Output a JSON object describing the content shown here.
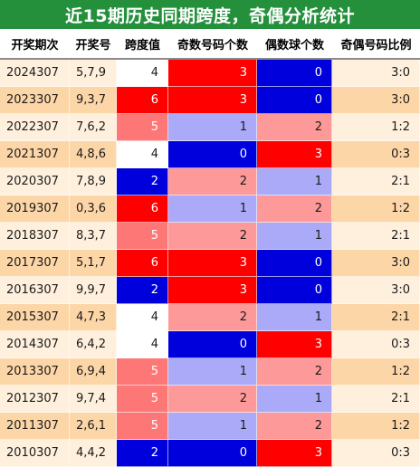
{
  "title": "近15期历史同期跨度，奇偶分析统计",
  "headers": [
    "开奖期次",
    "开奖号",
    "跨度值",
    "奇数号码个数",
    "偶数球个数",
    "奇偶号码比例"
  ],
  "colors": {
    "title_bg": "#24903c",
    "row_odd": "#fff0dd",
    "row_even": "#fdd6a8",
    "red": "#ff0000",
    "blue": "#0000dd",
    "pink": "#fe9999",
    "lavender": "#aaaaf8",
    "salmon": "#fe7777",
    "white": "#ffffff"
  },
  "rows": [
    {
      "period": "2024307",
      "numbers": "5,7,9",
      "span": "4",
      "odd": "3",
      "even": "0",
      "ratio": "3:0",
      "span_color": "white",
      "odd_color": "red",
      "even_color": "blue"
    },
    {
      "period": "2023307",
      "numbers": "9,3,7",
      "span": "6",
      "odd": "3",
      "even": "0",
      "ratio": "3:0",
      "span_color": "red",
      "odd_color": "red",
      "even_color": "blue"
    },
    {
      "period": "2022307",
      "numbers": "7,6,2",
      "span": "5",
      "odd": "1",
      "even": "2",
      "ratio": "1:2",
      "span_color": "salmon",
      "odd_color": "lavender",
      "even_color": "pink"
    },
    {
      "period": "2021307",
      "numbers": "4,8,6",
      "span": "4",
      "odd": "0",
      "even": "3",
      "ratio": "0:3",
      "span_color": "white",
      "odd_color": "blue",
      "even_color": "red"
    },
    {
      "period": "2020307",
      "numbers": "7,8,9",
      "span": "2",
      "odd": "2",
      "even": "1",
      "ratio": "2:1",
      "span_color": "blue",
      "odd_color": "pink",
      "even_color": "lavender"
    },
    {
      "period": "2019307",
      "numbers": "0,3,6",
      "span": "6",
      "odd": "1",
      "even": "2",
      "ratio": "1:2",
      "span_color": "red",
      "odd_color": "lavender",
      "even_color": "pink"
    },
    {
      "period": "2018307",
      "numbers": "8,3,7",
      "span": "5",
      "odd": "2",
      "even": "1",
      "ratio": "2:1",
      "span_color": "salmon",
      "odd_color": "pink",
      "even_color": "lavender"
    },
    {
      "period": "2017307",
      "numbers": "5,1,7",
      "span": "6",
      "odd": "3",
      "even": "0",
      "ratio": "3:0",
      "span_color": "red",
      "odd_color": "red",
      "even_color": "blue"
    },
    {
      "period": "2016307",
      "numbers": "9,9,7",
      "span": "2",
      "odd": "3",
      "even": "0",
      "ratio": "3:0",
      "span_color": "blue",
      "odd_color": "red",
      "even_color": "blue"
    },
    {
      "period": "2015307",
      "numbers": "4,7,3",
      "span": "4",
      "odd": "2",
      "even": "1",
      "ratio": "2:1",
      "span_color": "white",
      "odd_color": "pink",
      "even_color": "lavender"
    },
    {
      "period": "2014307",
      "numbers": "6,4,2",
      "span": "4",
      "odd": "0",
      "even": "3",
      "ratio": "0:3",
      "span_color": "white",
      "odd_color": "blue",
      "even_color": "red"
    },
    {
      "period": "2013307",
      "numbers": "6,9,4",
      "span": "5",
      "odd": "1",
      "even": "2",
      "ratio": "1:2",
      "span_color": "salmon",
      "odd_color": "lavender",
      "even_color": "pink"
    },
    {
      "period": "2012307",
      "numbers": "9,7,4",
      "span": "5",
      "odd": "2",
      "even": "1",
      "ratio": "2:1",
      "span_color": "salmon",
      "odd_color": "pink",
      "even_color": "lavender"
    },
    {
      "period": "2011307",
      "numbers": "2,6,1",
      "span": "5",
      "odd": "1",
      "even": "2",
      "ratio": "1:2",
      "span_color": "salmon",
      "odd_color": "lavender",
      "even_color": "pink"
    },
    {
      "period": "2010307",
      "numbers": "4,4,2",
      "span": "2",
      "odd": "0",
      "even": "3",
      "ratio": "0:3",
      "span_color": "blue",
      "odd_color": "blue",
      "even_color": "red"
    }
  ]
}
